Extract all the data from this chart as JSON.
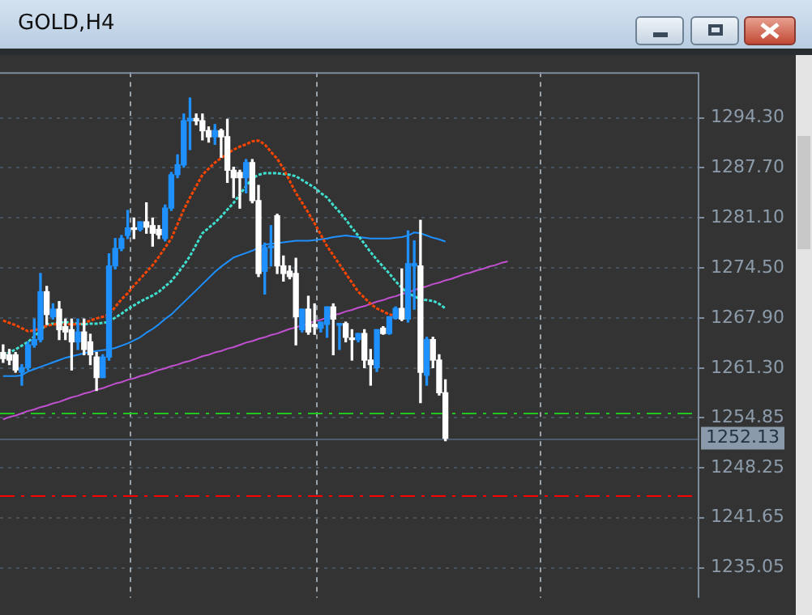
{
  "chart_data": {
    "type": "candlestick",
    "title": "GOLD,H4",
    "categories": [
      null,
      null,
      null,
      null,
      null,
      null,
      null,
      null,
      null,
      null,
      null,
      null,
      null,
      null,
      null,
      null,
      null,
      null,
      null,
      null,
      null,
      null,
      null,
      null,
      null,
      null,
      null,
      null,
      null,
      null,
      null,
      null,
      null,
      null,
      null,
      null,
      null,
      null,
      null,
      null,
      null,
      null,
      null,
      null,
      null,
      null,
      null,
      null,
      null,
      null,
      null,
      null,
      null,
      null,
      null,
      null,
      null,
      null,
      null,
      null,
      null,
      null,
      null,
      null,
      null,
      null,
      null,
      null,
      null,
      null,
      null,
      null,
      null,
      null,
      null,
      null,
      null,
      null,
      null,
      null,
      null,
      null
    ],
    "ohlc": [
      [
        1263.4,
        1264.4,
        1262.1,
        1262.6
      ],
      [
        1263.1,
        1263.8,
        1261.8,
        1262.4
      ],
      [
        1263.1,
        1263.4,
        1260.8,
        1261.1
      ],
      [
        1260.8,
        1261.8,
        1259.1,
        1261.4
      ],
      [
        1261.4,
        1264.8,
        1261.1,
        1264.4
      ],
      [
        1264.4,
        1267.8,
        1264.1,
        1265.1
      ],
      [
        1265.1,
        1273.8,
        1264.8,
        1271.4
      ],
      [
        1271.4,
        1272.1,
        1267.1,
        1268.4
      ],
      [
        1268.1,
        1269.8,
        1267.8,
        1269.1
      ],
      [
        1269.1,
        1270.1,
        1265.1,
        1266.4
      ],
      [
        1266.8,
        1267.8,
        1265.1,
        1266.1
      ],
      [
        1266.4,
        1267.8,
        1261.1,
        1264.8
      ],
      [
        1264.8,
        1267.8,
        1263.8,
        1266.1
      ],
      [
        1266.1,
        1267.8,
        1263.1,
        1263.8
      ],
      [
        1264.8,
        1265.8,
        1261.8,
        1263.1
      ],
      [
        1262.8,
        1263.4,
        1258.4,
        1260.1
      ],
      [
        1260.1,
        1263.1,
        1260.1,
        1262.8
      ],
      [
        1262.8,
        1276.4,
        1262.4,
        1274.8
      ],
      [
        1274.8,
        1278.4,
        1274.4,
        1277.1
      ],
      [
        1277.1,
        1278.8,
        1276.8,
        1278.4
      ],
      [
        1278.8,
        1282.1,
        1278.4,
        1279.8
      ],
      [
        1279.8,
        1281.1,
        1278.4,
        1279.6
      ],
      [
        1279.6,
        1280.6,
        1279.4,
        1280.6
      ],
      [
        1280.6,
        1283.1,
        1279.1,
        1279.9
      ],
      [
        1280.1,
        1281.1,
        1277.4,
        1279.1
      ],
      [
        1279.6,
        1280.1,
        1278.4,
        1278.9
      ],
      [
        1278.4,
        1282.8,
        1278.1,
        1282.4
      ],
      [
        1282.4,
        1287.1,
        1282.1,
        1286.8
      ],
      [
        1286.8,
        1289.4,
        1286.4,
        1288.1
      ],
      [
        1288.1,
        1294.8,
        1287.8,
        1293.9
      ],
      [
        1293.9,
        1296.9,
        1290.1,
        1294.2
      ],
      [
        1294.2,
        1294.8,
        1293.4,
        1293.9
      ],
      [
        1293.9,
        1294.8,
        1291.4,
        1292.6
      ],
      [
        1292.6,
        1293.1,
        1291.1,
        1291.8
      ],
      [
        1291.8,
        1293.4,
        1290.8,
        1292.6
      ],
      [
        1292.6,
        1292.8,
        1289.1,
        1291.8
      ],
      [
        1291.8,
        1294.1,
        1285.8,
        1287.4
      ],
      [
        1287.4,
        1287.8,
        1283.8,
        1286.4
      ],
      [
        1287.1,
        1287.4,
        1282.4,
        1286.4
      ],
      [
        1286.4,
        1288.8,
        1284.4,
        1288.4
      ],
      [
        1288.4,
        1288.8,
        1283.1,
        1283.4
      ],
      [
        1283.4,
        1285.4,
        1273.4,
        1273.8
      ],
      [
        1274.1,
        1277.8,
        1271.1,
        1277.2
      ],
      [
        1277.2,
        1280.1,
        1274.8,
        1277.4
      ],
      [
        1281.4,
        1281.6,
        1273.8,
        1274.8
      ],
      [
        1274.8,
        1276.1,
        1272.8,
        1273.8
      ],
      [
        1274.1,
        1274.8,
        1273.1,
        1273.4
      ],
      [
        1273.8,
        1275.8,
        1264.4,
        1268.1
      ],
      [
        1266.4,
        1269.1,
        1266.1,
        1269.1
      ],
      [
        1269.1,
        1270.8,
        1265.8,
        1266.1
      ],
      [
        1267.1,
        1269.8,
        1265.8,
        1266.8
      ],
      [
        1266.6,
        1267.4,
        1266.1,
        1267.4
      ],
      [
        1267.1,
        1269.4,
        1265.4,
        1269.4
      ],
      [
        1269.4,
        1269.8,
        1263.1,
        1267.8
      ],
      [
        1267.0,
        1267.2,
        1263.8,
        1267.2
      ],
      [
        1267.2,
        1267.4,
        1264.8,
        1265.4
      ],
      [
        1265.1,
        1266.4,
        1262.4,
        1265.1
      ],
      [
        1265.1,
        1265.9,
        1264.8,
        1265.9
      ],
      [
        1265.9,
        1266.4,
        1261.4,
        1262.4
      ],
      [
        1262.4,
        1263.8,
        1259.1,
        1261.8
      ],
      [
        1261.4,
        1266.4,
        1260.9,
        1266.4
      ],
      [
        1266.6,
        1266.8,
        1265.8,
        1265.9
      ],
      [
        1265.9,
        1268.1,
        1265.8,
        1268.1
      ],
      [
        1267.9,
        1269.4,
        1267.8,
        1269.2
      ],
      [
        1269.2,
        1274.4,
        1267.6,
        1267.8
      ],
      [
        1267.8,
        1279.4,
        1267.4,
        1275.1
      ],
      [
        1274.8,
        1278.1,
        1269.1,
        1275.1
      ],
      [
        1274.8,
        1280.8,
        1256.8,
        1260.8
      ],
      [
        1260.4,
        1265.4,
        1259.1,
        1265.1
      ],
      [
        1265.1,
        1265.4,
        1261.4,
        1262.4
      ],
      [
        1262.4,
        1263.1,
        1257.8,
        1258.1
      ],
      [
        1258.1,
        1259.8,
        1251.8,
        1252.1
      ],
      null,
      null,
      null,
      null,
      null,
      null,
      null,
      null,
      null,
      null
    ],
    "colors": [
      "#ffffff",
      "#ffffff",
      "#ffffff",
      "#1e90ff",
      "#1e90ff",
      "#1e90ff",
      "#1e90ff",
      "#ffffff",
      "#1e90ff",
      "#ffffff",
      "#ffffff",
      "#ffffff",
      "#1e90ff",
      "#ffffff",
      "#ffffff",
      "#ffffff",
      "#1e90ff",
      "#1e90ff",
      "#1e90ff",
      "#1e90ff",
      "#1e90ff",
      "#ffffff",
      "#1e90ff",
      "#ffffff",
      "#ffffff",
      "#ffffff",
      "#1e90ff",
      "#1e90ff",
      "#1e90ff",
      "#1e90ff",
      "#1e90ff",
      "#ffffff",
      "#ffffff",
      "#ffffff",
      "#1e90ff",
      "#ffffff",
      "#ffffff",
      "#ffffff",
      "#ffffff",
      "#1e90ff",
      "#ffffff",
      "#ffffff",
      "#1e90ff",
      "#1e90ff",
      "#ffffff",
      "#ffffff",
      "#ffffff",
      "#ffffff",
      "#1e90ff",
      "#ffffff",
      "#ffffff",
      "#1e90ff",
      "#1e90ff",
      "#ffffff",
      "#1e90ff",
      "#ffffff",
      "#ffffff",
      "#1e90ff",
      "#ffffff",
      "#ffffff",
      "#1e90ff",
      "#ffffff",
      "#1e90ff",
      "#1e90ff",
      "#ffffff",
      "#1e90ff",
      "#1e90ff",
      "#ffffff",
      "#1e90ff",
      "#ffffff",
      "#ffffff",
      "#ffffff",
      null,
      null,
      null,
      null,
      null,
      null,
      null,
      null,
      null,
      null
    ],
    "series": [
      {
        "type": "line",
        "color": "#ff4500",
        "line_style": "dotted",
        "values": [
          1267.6,
          1267.3,
          1267.0,
          1266.6,
          1266.2,
          1266.3,
          1266.6,
          1266.9,
          1267.1,
          1267.1,
          1267.1,
          1267.1,
          1267.1,
          1267.3,
          1267.6,
          1267.9,
          1268.1,
          1268.4,
          1269.4,
          1270.4,
          1271.2,
          1272.2,
          1273.1,
          1274.0,
          1274.9,
          1276.0,
          1277.2,
          1278.4,
          1280.3,
          1282.2,
          1283.8,
          1285.3,
          1286.8,
          1287.6,
          1288.4,
          1289.0,
          1289.6,
          1290.1,
          1290.5,
          1290.8,
          1291.2,
          1291.3,
          1290.8,
          1289.8,
          1288.9,
          1287.6,
          1286.0,
          1284.4,
          1283.1,
          1281.8,
          1280.4,
          1278.9,
          1277.4,
          1276.2,
          1275.0,
          1273.8,
          1272.6,
          1271.4,
          1270.6,
          1269.8,
          1269.2,
          1268.8,
          1268.4,
          1268.3,
          null,
          null,
          null,
          null,
          null,
          null,
          null,
          null,
          null,
          null,
          null,
          null,
          null,
          null,
          null,
          null,
          null,
          null
        ]
      },
      {
        "type": "line",
        "color": "#40e0d0",
        "line_style": "dotted",
        "values": [
          1263.0,
          1263.4,
          1263.8,
          1264.3,
          1264.8,
          1265.5,
          1266.3,
          1267.1,
          1267.2,
          1267.3,
          1267.4,
          1267.3,
          1267.2,
          1267.1,
          1267.2,
          1267.2,
          1267.3,
          1267.4,
          1268.0,
          1268.5,
          1269.1,
          1269.6,
          1270.1,
          1270.5,
          1270.9,
          1271.4,
          1272.1,
          1272.8,
          1273.8,
          1274.9,
          1276.1,
          1277.6,
          1279.1,
          1279.8,
          1280.5,
          1281.3,
          1282.2,
          1283.1,
          1284.2,
          1285.3,
          1286.3,
          1286.8,
          1287.0,
          1287.0,
          1287.0,
          1286.9,
          1286.8,
          1286.6,
          1286.1,
          1285.6,
          1285.1,
          1284.4,
          1283.8,
          1282.8,
          1281.9,
          1280.9,
          1279.8,
          1278.8,
          1277.7,
          1276.6,
          1275.6,
          1274.7,
          1273.8,
          1272.8,
          1271.9,
          1271.2,
          1270.8,
          1270.4,
          1270.3,
          1270.2,
          1269.8,
          1269.2,
          null,
          null,
          null,
          null,
          null,
          null,
          null,
          null,
          null,
          null
        ]
      },
      {
        "type": "line",
        "color": "#1e90ff",
        "line_style": "solid",
        "values": [
          1260.3,
          1260.3,
          1260.3,
          1260.4,
          1260.9,
          1261.2,
          1261.5,
          1261.8,
          1262.1,
          1262.4,
          1262.7,
          1262.9,
          1263.1,
          1263.3,
          1263.5,
          1263.6,
          1263.7,
          1263.8,
          1264.0,
          1264.3,
          1264.6,
          1265.0,
          1265.4,
          1266.0,
          1266.5,
          1267.1,
          1267.8,
          1268.4,
          1269.2,
          1270.0,
          1270.8,
          1271.6,
          1272.4,
          1273.2,
          1274.0,
          1274.7,
          1275.3,
          1275.9,
          1276.2,
          1276.5,
          1276.8,
          1277.2,
          1277.6,
          1277.7,
          1277.8,
          1277.9,
          1278.0,
          1278.1,
          1278.1,
          1278.1,
          1278.2,
          1278.3,
          1278.4,
          1278.6,
          1278.7,
          1278.8,
          1278.7,
          1278.6,
          1278.5,
          1278.4,
          1278.4,
          1278.4,
          1278.4,
          1278.5,
          1278.6,
          1278.8,
          1279.2,
          1279.1,
          1278.8,
          1278.5,
          1278.3,
          1278.0,
          null,
          null,
          null,
          null,
          null,
          null,
          null,
          null,
          null,
          null
        ]
      },
      {
        "type": "line",
        "color": "#c050d0",
        "line_style": "solid",
        "values": [
          1254.6,
          1254.9,
          1255.1,
          1255.4,
          1255.7,
          1255.9,
          1256.2,
          1256.4,
          1256.7,
          1256.9,
          1257.2,
          1257.5,
          1257.7,
          1258.0,
          1258.2,
          1258.5,
          1258.7,
          1259.0,
          1259.3,
          1259.5,
          1259.8,
          1260.0,
          1260.3,
          1260.5,
          1260.8,
          1261.1,
          1261.3,
          1261.6,
          1261.8,
          1262.1,
          1262.3,
          1262.6,
          1262.9,
          1263.1,
          1263.4,
          1263.6,
          1263.9,
          1264.1,
          1264.4,
          1264.7,
          1264.9,
          1265.2,
          1265.4,
          1265.7,
          1265.9,
          1266.2,
          1266.5,
          1266.7,
          1267.0,
          1267.2,
          1267.5,
          1267.7,
          1268.0,
          1268.3,
          1268.5,
          1268.8,
          1269.0,
          1269.3,
          1269.5,
          1269.8,
          1270.1,
          1270.3,
          1270.6,
          1270.8,
          1271.1,
          1271.3,
          1271.6,
          1271.9,
          1272.1,
          1272.4,
          1272.6,
          1272.9,
          1273.1,
          1273.4,
          1273.7,
          1273.9,
          1274.2,
          1274.4,
          1274.7,
          1274.9,
          1275.2,
          1275.4
        ]
      }
    ],
    "ylim": [
      1231.1,
      1300.3
    ],
    "yticks": [
      {
        "value": 1294.3,
        "label": "1294.30"
      },
      {
        "value": 1287.7,
        "label": "1287.70"
      },
      {
        "value": 1281.1,
        "label": "1281.10"
      },
      {
        "value": 1274.5,
        "label": "1274.50"
      },
      {
        "value": 1267.9,
        "label": "1267.90"
      },
      {
        "value": 1261.3,
        "label": "1261.30"
      },
      {
        "value": 1254.85,
        "label": "1254.85"
      },
      {
        "value": 1248.25,
        "label": "1248.25"
      },
      {
        "value": 1241.65,
        "label": "1241.65"
      },
      {
        "value": 1235.05,
        "label": "1235.05"
      }
    ],
    "ref_lines": [
      {
        "axis": "y",
        "value": 1255.4,
        "color": "#22c422",
        "line_style": "dashed"
      },
      {
        "axis": "y",
        "value": 1244.6,
        "color": "#ff0000",
        "line_style": "dashed"
      },
      {
        "axis": "y",
        "value": 1252.13,
        "label": "1252.13",
        "color": "#4c5c6c",
        "line_style": "solid"
      }
    ],
    "tick_labels": "y",
    "grid": "y",
    "legend": false
  }
}
